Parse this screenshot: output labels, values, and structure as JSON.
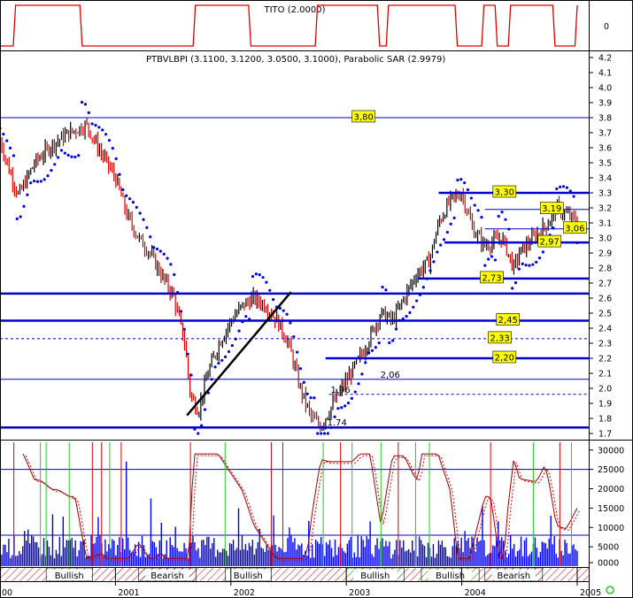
{
  "chart_data": {
    "type": "line",
    "panels": {
      "indicator": {
        "title": "TITO (2.0000)",
        "y_tick_label": "0",
        "line_color": "#cc0000"
      },
      "price": {
        "title": "PTBVLBPI (3.1100, 3.1200, 3.0500, 3.1000), Parabolic SAR (2.9979)",
        "ylim": [
          1.7,
          4.2
        ],
        "yticks": [
          "4.2",
          "4.1",
          "4.0",
          "3.9",
          "3.8",
          "3.7",
          "3.6",
          "3.5",
          "3.4",
          "3.3",
          "3.2",
          "3.1",
          "3.0",
          "2.9",
          "2.8",
          "2.7",
          "2.6",
          "2.5",
          "2.4",
          "2.3",
          "2.2",
          "2.1",
          "2.0",
          "1.9",
          "1.8",
          "1.7"
        ],
        "yvalues": [
          4.2,
          4.1,
          4.0,
          3.9,
          3.8,
          3.7,
          3.6,
          3.5,
          3.4,
          3.3,
          3.2,
          3.1,
          3.0,
          2.9,
          2.8,
          2.7,
          2.6,
          2.5,
          2.4,
          2.3,
          2.2,
          2.1,
          2.0,
          1.9,
          1.8,
          1.7
        ],
        "series": [
          {
            "key": "price",
            "points": [
              [
                0,
                3.65
              ],
              [
                0.08,
                3.45
              ],
              [
                0.16,
                3.28
              ],
              [
                0.3,
                3.5
              ],
              [
                0.45,
                3.62
              ],
              [
                0.6,
                3.7
              ],
              [
                0.75,
                3.75
              ],
              [
                0.85,
                3.6
              ],
              [
                1.0,
                3.4
              ],
              [
                1.1,
                3.15
              ],
              [
                1.2,
                3.0
              ],
              [
                1.3,
                2.9
              ],
              [
                1.4,
                2.75
              ],
              [
                1.5,
                2.62
              ],
              [
                1.6,
                2.3
              ],
              [
                1.65,
                1.95
              ],
              [
                1.72,
                1.85
              ],
              [
                1.8,
                2.1
              ],
              [
                1.9,
                2.3
              ],
              [
                2.0,
                2.45
              ],
              [
                2.1,
                2.55
              ],
              [
                2.2,
                2.6
              ],
              [
                2.3,
                2.55
              ],
              [
                2.4,
                2.45
              ],
              [
                2.5,
                2.3
              ],
              [
                2.6,
                2.0
              ],
              [
                2.7,
                1.8
              ],
              [
                2.78,
                1.75
              ],
              [
                2.85,
                1.85
              ],
              [
                3.0,
                2.05
              ],
              [
                3.15,
                2.25
              ],
              [
                3.3,
                2.5
              ],
              [
                3.4,
                2.45
              ],
              [
                3.5,
                2.6
              ],
              [
                3.6,
                2.75
              ],
              [
                3.72,
                2.85
              ],
              [
                3.8,
                3.1
              ],
              [
                3.9,
                3.25
              ],
              [
                4.0,
                3.3
              ],
              [
                4.1,
                3.05
              ],
              [
                4.2,
                2.95
              ],
              [
                4.35,
                3.0
              ],
              [
                4.45,
                2.8
              ],
              [
                4.5,
                2.9
              ],
              [
                4.62,
                3.0
              ],
              [
                4.75,
                3.1
              ],
              [
                4.82,
                3.2
              ],
              [
                4.92,
                3.15
              ],
              [
                5.0,
                3.1
              ]
            ]
          }
        ],
        "hlines": [
          {
            "value": 3.8,
            "label": "3,80",
            "style": "thin",
            "label_box": true,
            "label_x": 3.15
          },
          {
            "value": 3.3,
            "label": "3,30",
            "style": "thick",
            "label_box": true,
            "label_x": 4.37,
            "x_from": 3.8
          },
          {
            "value": 3.19,
            "label": "3,19",
            "style": "thin",
            "label_box": true,
            "label_x": 4.78,
            "x_from": 4.2
          },
          {
            "value": 3.06,
            "label": "3,06",
            "style": "thin",
            "label_box": true,
            "label_x": 4.98,
            "x_from": 4.2
          },
          {
            "value": 2.97,
            "label": "2,97",
            "style": "thick",
            "label_box": true,
            "label_x": 4.76,
            "x_from": 3.85
          },
          {
            "value": 2.73,
            "label": "2,73",
            "style": "thick",
            "label_box": true,
            "label_x": 4.26,
            "x_from": 3.62
          },
          {
            "value": 2.63,
            "label": "",
            "style": "thick"
          },
          {
            "value": 2.45,
            "label": "2,45",
            "style": "thick",
            "label_box": true,
            "label_x": 4.4
          },
          {
            "value": 2.33,
            "label": "2,33",
            "style": "dashed",
            "label_box": true,
            "label_x": 4.33
          },
          {
            "value": 2.2,
            "label": "2,20",
            "style": "thick",
            "label_box": true,
            "label_x": 4.37,
            "x_from": 2.82
          },
          {
            "value": 2.06,
            "label": "2,06",
            "style": "thin",
            "label_box": false,
            "label_x": 3.38
          },
          {
            "value": 1.96,
            "label": "1.96",
            "style": "dashed",
            "label_box": false,
            "label_x": 2.95,
            "x_from": 2.85
          },
          {
            "value": 1.74,
            "label": "1.74",
            "style": "thick",
            "label_box": false,
            "label_x": 2.92
          }
        ]
      },
      "volume": {
        "ylim": [
          0,
          32000
        ],
        "yticks": [
          "30000",
          "25000",
          "20000",
          "15000",
          "10000",
          "5000",
          "0000"
        ],
        "yvalues": [
          30000,
          25000,
          20000,
          15000,
          10000,
          5000,
          0
        ],
        "hlines": [
          25000,
          8000
        ]
      }
    },
    "x_axis": {
      "ticks": [
        "00",
        "2001",
        "2002",
        "2003",
        "2004",
        "2005"
      ],
      "xlim": [
        0,
        5.1
      ]
    },
    "regimes": [
      {
        "label": "Bullish",
        "from": 0.4,
        "to": 0.8
      },
      {
        "label": "Bearish",
        "from": 1.2,
        "to": 1.7
      },
      {
        "label": "Bullish",
        "from": 1.95,
        "to": 2.35
      },
      {
        "label": "Bullish",
        "from": 3.0,
        "to": 3.5
      },
      {
        "label": "Bullish",
        "from": 3.65,
        "to": 4.15
      },
      {
        "label": "Bearish",
        "from": 4.2,
        "to": 4.7
      }
    ],
    "colors": {
      "up": "#000000",
      "down": "#dd0000",
      "sar": "#0000ee",
      "level": "#0000cc",
      "label_box": "#ffff00",
      "volume": "#0000ee",
      "buy_signal": "#22cc22",
      "sell_signal": "#dd0000"
    }
  }
}
